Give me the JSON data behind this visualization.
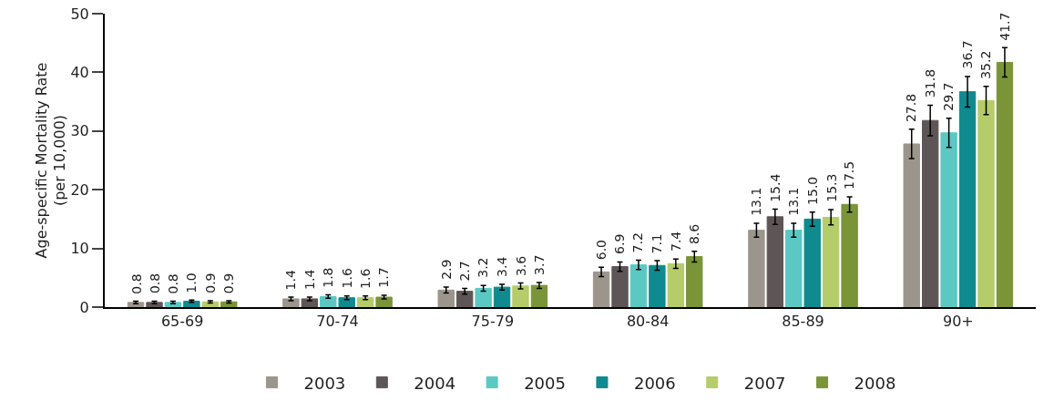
{
  "chart_data": {
    "type": "bar",
    "ylabel": "Age-specific Mortality Rate\n(per 10,000)",
    "categories": [
      "65-69",
      "70-74",
      "75-79",
      "80-84",
      "85-89",
      "90+"
    ],
    "series": [
      {
        "name": "2003",
        "color": "#9b958c",
        "values": [
          0.8,
          1.4,
          2.9,
          6.0,
          13.1,
          27.8
        ],
        "value_labels": [
          "0.8",
          "1.4",
          "2.9",
          "6.0",
          "13.1",
          "27.8"
        ],
        "errors": [
          0.2,
          0.3,
          0.5,
          0.8,
          1.2,
          2.5
        ]
      },
      {
        "name": "2004",
        "color": "#5e5656",
        "values": [
          0.8,
          1.4,
          2.7,
          6.9,
          15.4,
          31.8
        ],
        "value_labels": [
          "0.8",
          "1.4",
          "2.7",
          "6.9",
          "15.4",
          "31.8"
        ],
        "errors": [
          0.2,
          0.3,
          0.5,
          0.8,
          1.3,
          2.6
        ]
      },
      {
        "name": "2005",
        "color": "#5bc8c4",
        "values": [
          0.8,
          1.8,
          3.2,
          7.2,
          13.1,
          29.7
        ],
        "value_labels": [
          "0.8",
          "1.8",
          "3.2",
          "7.2",
          "13.1",
          "29.7"
        ],
        "errors": [
          0.2,
          0.3,
          0.5,
          0.8,
          1.2,
          2.5
        ]
      },
      {
        "name": "2006",
        "color": "#0f8a8f",
        "values": [
          1.0,
          1.6,
          3.4,
          7.1,
          15.0,
          36.7
        ],
        "value_labels": [
          "1.0",
          "1.6",
          "3.4",
          "7.1",
          "15.0",
          "36.7"
        ],
        "errors": [
          0.2,
          0.3,
          0.5,
          0.8,
          1.2,
          2.6
        ]
      },
      {
        "name": "2007",
        "color": "#b5cc6a",
        "values": [
          0.9,
          1.6,
          3.6,
          7.4,
          15.3,
          35.2
        ],
        "value_labels": [
          "0.9",
          "1.6",
          "3.6",
          "7.4",
          "15.3",
          "35.2"
        ],
        "errors": [
          0.2,
          0.3,
          0.5,
          0.8,
          1.3,
          2.4
        ]
      },
      {
        "name": "2008",
        "color": "#7a9438",
        "values": [
          0.9,
          1.7,
          3.7,
          8.6,
          17.5,
          41.7
        ],
        "value_labels": [
          "0.9",
          "1.7",
          "3.7",
          "8.6",
          "17.5",
          "41.7"
        ],
        "errors": [
          0.2,
          0.3,
          0.5,
          0.9,
          1.3,
          2.5
        ]
      }
    ],
    "ylim": [
      0,
      50
    ],
    "yticks": [
      0,
      10,
      20,
      30,
      40,
      50
    ],
    "grid": false,
    "legend": "bottom"
  }
}
